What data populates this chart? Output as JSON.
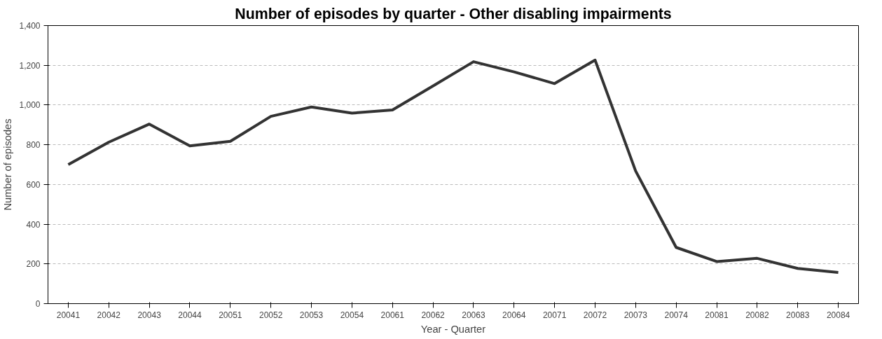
{
  "chart_data": {
    "type": "line",
    "title": "Number of episodes by quarter - Other disabling impairments",
    "xlabel": "Year - Quarter",
    "ylabel": "Number of episodes",
    "categories": [
      "20041",
      "20042",
      "20043",
      "20044",
      "20051",
      "20052",
      "20053",
      "20054",
      "20061",
      "20062",
      "20063",
      "20064",
      "20071",
      "20072",
      "20073",
      "20074",
      "20081",
      "20082",
      "20083",
      "20084"
    ],
    "series": [
      {
        "color": "#333333",
        "values": [
          700,
          813,
          904,
          794,
          817,
          943,
          990,
          959,
          975,
          1096,
          1218,
          1167,
          1108,
          1226,
          668,
          283,
          212,
          228,
          177,
          157
        ]
      }
    ],
    "ylim": [
      0,
      1400
    ],
    "yticks": [
      {
        "value": 0,
        "label": "0"
      },
      {
        "value": 200,
        "label": "200"
      },
      {
        "value": 400,
        "label": "400"
      },
      {
        "value": 600,
        "label": "600"
      },
      {
        "value": 800,
        "label": "800"
      },
      {
        "value": 1000,
        "label": "1,000"
      },
      {
        "value": 1200,
        "label": "1,200"
      },
      {
        "value": 1400,
        "label": "1,400"
      }
    ],
    "grid": "y",
    "marker": "none",
    "line_style": "solid"
  }
}
